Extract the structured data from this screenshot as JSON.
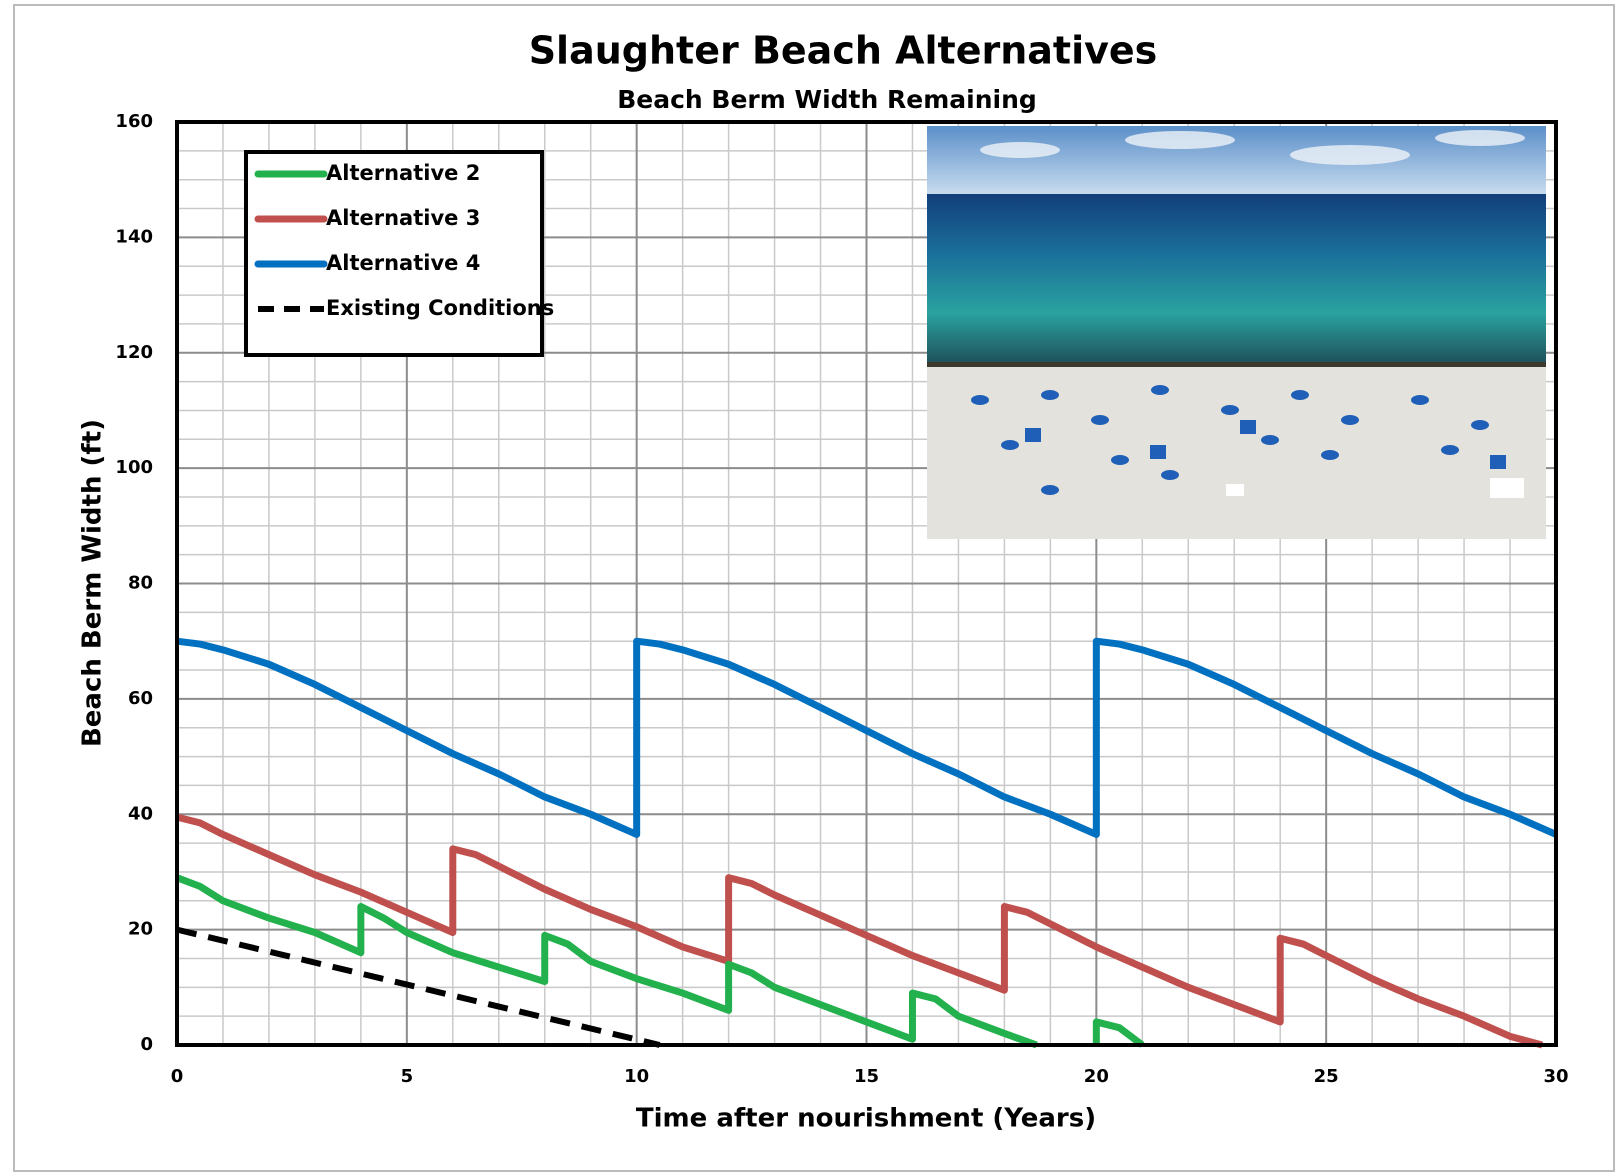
{
  "chart_data": {
    "type": "line",
    "title": "Slaughter Beach Alternatives",
    "subtitle": "Beach Berm Width Remaining",
    "x_label": "Time after nourishment (Years)",
    "y_label": "Beach Berm Width (ft)",
    "xlim": [
      0,
      30
    ],
    "xticks": [
      0,
      5,
      10,
      15,
      20,
      25,
      30
    ],
    "ylim": [
      0,
      160
    ],
    "yticks": [
      0,
      20,
      40,
      60,
      80,
      100,
      120,
      140,
      160
    ],
    "grid": true,
    "minor_grid": true,
    "legend": "upper left",
    "series": [
      {
        "name": "Alternative 2",
        "color": "#22b14c",
        "dash": false,
        "x": [
          0,
          0.5,
          1,
          2,
          3,
          4,
          4,
          4.5,
          5,
          6,
          7,
          8,
          8,
          8.5,
          9,
          10,
          11,
          12,
          12,
          12.5,
          13,
          14,
          15,
          16,
          16,
          16.5,
          17,
          18,
          18.7,
          null,
          20,
          20,
          20.5,
          21
        ],
        "values": [
          29,
          27.5,
          25,
          22,
          19.5,
          16,
          24,
          22,
          19.5,
          16,
          13.5,
          11,
          19,
          17.5,
          14.5,
          11.5,
          9,
          6,
          14,
          12.5,
          10,
          7,
          4,
          1,
          9,
          8,
          5,
          2,
          0,
          null,
          0,
          4,
          3,
          0
        ]
      },
      {
        "name": "Alternative 3",
        "color": "#c0504d",
        "dash": false,
        "x": [
          0,
          0.5,
          1,
          2,
          3,
          4,
          5,
          6,
          6,
          6.5,
          7,
          8,
          9,
          10,
          11,
          12,
          12,
          12.5,
          13,
          14,
          15,
          16,
          17,
          18,
          18,
          18.5,
          19,
          20,
          21,
          22,
          23,
          24,
          24,
          24.5,
          25,
          26,
          27,
          28,
          29,
          29.7
        ],
        "values": [
          39.5,
          38.5,
          36.5,
          33,
          29.5,
          26.5,
          23,
          19.5,
          34,
          33,
          31,
          27,
          23.5,
          20.5,
          17,
          14.5,
          29,
          28,
          26,
          22.5,
          19,
          15.5,
          12.5,
          9.5,
          24,
          23,
          21,
          17,
          13.5,
          10,
          7,
          4,
          18.5,
          17.5,
          15.5,
          11.5,
          8,
          5,
          1.5,
          0
        ]
      },
      {
        "name": "Alternative 4",
        "color": "#0070c0",
        "dash": false,
        "x": [
          0,
          0.5,
          1,
          2,
          3,
          4,
          5,
          6,
          7,
          8,
          9,
          10,
          10,
          10.5,
          11,
          12,
          13,
          14,
          15,
          16,
          17,
          18,
          19,
          20,
          20,
          20.5,
          21,
          22,
          23,
          24,
          25,
          26,
          27,
          28,
          29,
          30
        ],
        "values": [
          70,
          69.5,
          68.5,
          66,
          62.5,
          58.5,
          54.5,
          50.5,
          47,
          43,
          40,
          36.5,
          70,
          69.5,
          68.5,
          66,
          62.5,
          58.5,
          54.5,
          50.5,
          47,
          43,
          40,
          36.5,
          70,
          69.5,
          68.5,
          66,
          62.5,
          58.5,
          54.5,
          50.5,
          47,
          43,
          40,
          36.5
        ]
      },
      {
        "name": "Existing Conditions",
        "color": "#000000",
        "dash": true,
        "x": [
          0,
          10.5
        ],
        "values": [
          20,
          0
        ]
      }
    ]
  }
}
